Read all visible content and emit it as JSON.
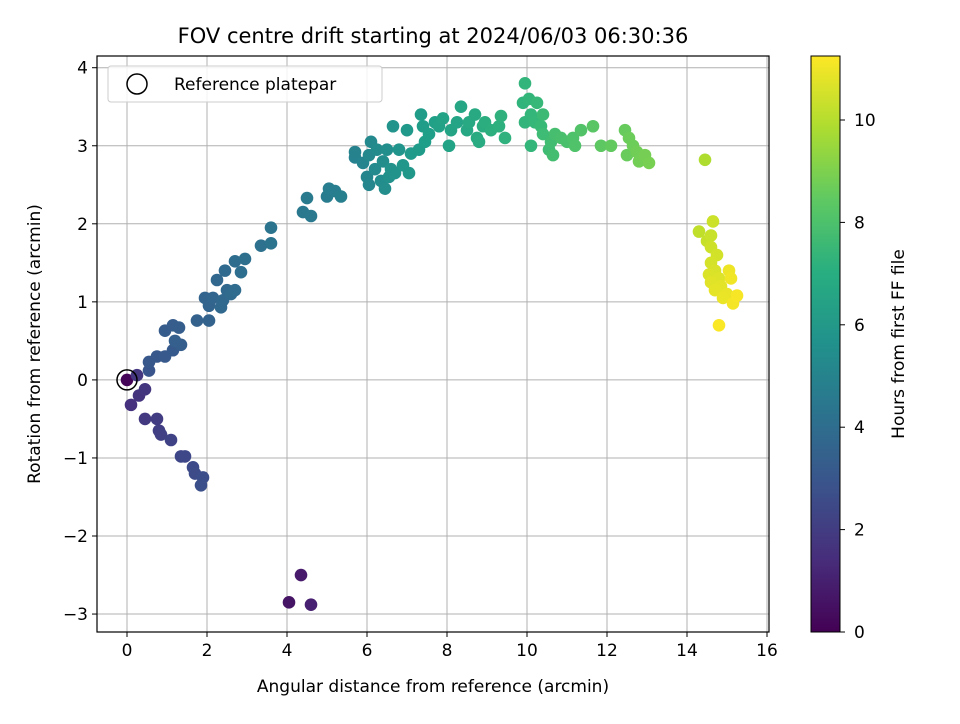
{
  "chart_data": {
    "type": "scatter",
    "title": "FOV centre drift starting at 2024/06/03 06:30:36",
    "xlabel": "Angular distance from reference (arcmin)",
    "ylabel": "Rotation from reference (arcmin)",
    "xlim": [
      -0.75,
      16.05
    ],
    "ylim": [
      -3.23,
      4.15
    ],
    "xticks": [
      0,
      2,
      4,
      6,
      8,
      10,
      12,
      14,
      16
    ],
    "yticks": [
      -3,
      -2,
      -1,
      0,
      1,
      2,
      3,
      4
    ],
    "xtick_labels": [
      "0",
      "2",
      "4",
      "6",
      "8",
      "10",
      "12",
      "14",
      "16"
    ],
    "ytick_labels": [
      "−3",
      "−2",
      "−1",
      "0",
      "1",
      "2",
      "3",
      "4"
    ],
    "grid": true,
    "legend": {
      "position": "top-left",
      "label": "Reference platepar"
    },
    "reference_point": {
      "x": 0,
      "y": 0
    },
    "colorbar": {
      "label": "Hours from first FF file",
      "range": [
        0,
        11.25
      ],
      "ticks": [
        0,
        2,
        4,
        6,
        8,
        10
      ],
      "tick_labels": [
        "0",
        "2",
        "4",
        "6",
        "8",
        "10"
      ],
      "colormap": "viridis"
    },
    "points": [
      {
        "x": 0.0,
        "y": 0.0,
        "c": 0.1
      },
      {
        "x": 4.05,
        "y": -2.85,
        "c": 0.6
      },
      {
        "x": 4.35,
        "y": -2.5,
        "c": 0.8
      },
      {
        "x": 4.6,
        "y": -2.88,
        "c": 1.0
      },
      {
        "x": 0.1,
        "y": -0.32,
        "c": 1.6
      },
      {
        "x": 0.3,
        "y": -0.2,
        "c": 1.7
      },
      {
        "x": 0.45,
        "y": -0.12,
        "c": 1.75
      },
      {
        "x": 0.25,
        "y": 0.06,
        "c": 1.8
      },
      {
        "x": 0.45,
        "y": -0.5,
        "c": 1.9
      },
      {
        "x": 0.75,
        "y": -0.5,
        "c": 2.0
      },
      {
        "x": 0.8,
        "y": -0.65,
        "c": 2.1
      },
      {
        "x": 0.85,
        "y": -0.7,
        "c": 2.15
      },
      {
        "x": 1.1,
        "y": -0.77,
        "c": 2.25
      },
      {
        "x": 1.35,
        "y": -0.98,
        "c": 2.4
      },
      {
        "x": 1.45,
        "y": -0.98,
        "c": 2.45
      },
      {
        "x": 1.65,
        "y": -1.12,
        "c": 2.55
      },
      {
        "x": 1.7,
        "y": -1.2,
        "c": 2.6
      },
      {
        "x": 1.9,
        "y": -1.25,
        "c": 2.7
      },
      {
        "x": 1.85,
        "y": -1.35,
        "c": 2.75
      },
      {
        "x": 0.55,
        "y": 0.12,
        "c": 3.0
      },
      {
        "x": 0.55,
        "y": 0.23,
        "c": 3.05
      },
      {
        "x": 0.75,
        "y": 0.3,
        "c": 3.1
      },
      {
        "x": 0.95,
        "y": 0.3,
        "c": 3.15
      },
      {
        "x": 1.15,
        "y": 0.38,
        "c": 3.2
      },
      {
        "x": 0.95,
        "y": 0.63,
        "c": 3.25
      },
      {
        "x": 1.15,
        "y": 0.7,
        "c": 3.3
      },
      {
        "x": 1.3,
        "y": 0.67,
        "c": 3.35
      },
      {
        "x": 1.35,
        "y": 0.45,
        "c": 3.35
      },
      {
        "x": 1.2,
        "y": 0.5,
        "c": 3.4
      },
      {
        "x": 1.75,
        "y": 0.76,
        "c": 3.5
      },
      {
        "x": 2.05,
        "y": 0.76,
        "c": 3.55
      },
      {
        "x": 1.95,
        "y": 1.05,
        "c": 3.6
      },
      {
        "x": 2.05,
        "y": 0.95,
        "c": 3.6
      },
      {
        "x": 2.15,
        "y": 1.05,
        "c": 3.65
      },
      {
        "x": 2.25,
        "y": 1.28,
        "c": 3.7
      },
      {
        "x": 2.35,
        "y": 0.93,
        "c": 3.75
      },
      {
        "x": 2.4,
        "y": 1.02,
        "c": 3.75
      },
      {
        "x": 2.5,
        "y": 1.15,
        "c": 3.8
      },
      {
        "x": 2.45,
        "y": 1.4,
        "c": 3.85
      },
      {
        "x": 2.6,
        "y": 1.1,
        "c": 3.9
      },
      {
        "x": 2.7,
        "y": 1.15,
        "c": 3.95
      },
      {
        "x": 2.7,
        "y": 1.52,
        "c": 4.0
      },
      {
        "x": 2.85,
        "y": 1.38,
        "c": 4.05
      },
      {
        "x": 2.95,
        "y": 1.55,
        "c": 4.1
      },
      {
        "x": 3.35,
        "y": 1.72,
        "c": 4.2
      },
      {
        "x": 3.6,
        "y": 1.75,
        "c": 4.3
      },
      {
        "x": 3.6,
        "y": 1.95,
        "c": 4.35
      },
      {
        "x": 4.4,
        "y": 2.15,
        "c": 4.5
      },
      {
        "x": 4.6,
        "y": 2.1,
        "c": 4.55
      },
      {
        "x": 4.5,
        "y": 2.33,
        "c": 4.6
      },
      {
        "x": 5.0,
        "y": 2.35,
        "c": 4.7
      },
      {
        "x": 5.05,
        "y": 2.45,
        "c": 4.75
      },
      {
        "x": 5.2,
        "y": 2.42,
        "c": 4.8
      },
      {
        "x": 5.35,
        "y": 2.35,
        "c": 4.85
      },
      {
        "x": 5.7,
        "y": 2.85,
        "c": 5.0
      },
      {
        "x": 5.7,
        "y": 2.92,
        "c": 5.05
      },
      {
        "x": 5.9,
        "y": 2.78,
        "c": 5.1
      },
      {
        "x": 6.0,
        "y": 2.6,
        "c": 5.15
      },
      {
        "x": 6.05,
        "y": 2.5,
        "c": 5.2
      },
      {
        "x": 6.05,
        "y": 2.88,
        "c": 5.25
      },
      {
        "x": 6.1,
        "y": 3.05,
        "c": 5.3
      },
      {
        "x": 6.2,
        "y": 2.7,
        "c": 5.35
      },
      {
        "x": 6.25,
        "y": 2.95,
        "c": 5.4
      },
      {
        "x": 6.35,
        "y": 2.55,
        "c": 5.45
      },
      {
        "x": 6.4,
        "y": 2.8,
        "c": 5.5
      },
      {
        "x": 6.45,
        "y": 2.45,
        "c": 5.55
      },
      {
        "x": 6.5,
        "y": 2.95,
        "c": 5.6
      },
      {
        "x": 6.55,
        "y": 2.6,
        "c": 5.65
      },
      {
        "x": 6.6,
        "y": 2.7,
        "c": 5.7
      },
      {
        "x": 6.7,
        "y": 2.65,
        "c": 5.75
      },
      {
        "x": 6.65,
        "y": 3.25,
        "c": 5.8
      },
      {
        "x": 6.8,
        "y": 2.95,
        "c": 5.85
      },
      {
        "x": 6.9,
        "y": 2.75,
        "c": 5.9
      },
      {
        "x": 7.05,
        "y": 2.65,
        "c": 5.95
      },
      {
        "x": 7.0,
        "y": 3.2,
        "c": 6.0
      },
      {
        "x": 7.1,
        "y": 2.9,
        "c": 6.05
      },
      {
        "x": 7.3,
        "y": 2.95,
        "c": 6.1
      },
      {
        "x": 7.35,
        "y": 3.4,
        "c": 6.15
      },
      {
        "x": 7.4,
        "y": 3.25,
        "c": 6.2
      },
      {
        "x": 7.45,
        "y": 3.05,
        "c": 6.25
      },
      {
        "x": 7.55,
        "y": 3.15,
        "c": 6.3
      },
      {
        "x": 7.7,
        "y": 3.3,
        "c": 6.35
      },
      {
        "x": 7.8,
        "y": 3.25,
        "c": 6.4
      },
      {
        "x": 7.9,
        "y": 3.35,
        "c": 6.45
      },
      {
        "x": 8.05,
        "y": 3.0,
        "c": 6.5
      },
      {
        "x": 8.1,
        "y": 3.2,
        "c": 6.55
      },
      {
        "x": 8.25,
        "y": 3.3,
        "c": 6.6
      },
      {
        "x": 8.35,
        "y": 3.5,
        "c": 6.65
      },
      {
        "x": 8.5,
        "y": 3.2,
        "c": 6.7
      },
      {
        "x": 8.55,
        "y": 3.3,
        "c": 6.75
      },
      {
        "x": 8.7,
        "y": 3.4,
        "c": 6.8
      },
      {
        "x": 8.75,
        "y": 3.1,
        "c": 6.85
      },
      {
        "x": 8.8,
        "y": 3.05,
        "c": 6.9
      },
      {
        "x": 8.9,
        "y": 3.25,
        "c": 6.95
      },
      {
        "x": 8.95,
        "y": 3.3,
        "c": 7.0
      },
      {
        "x": 9.1,
        "y": 3.2,
        "c": 7.05
      },
      {
        "x": 9.3,
        "y": 3.25,
        "c": 7.1
      },
      {
        "x": 9.35,
        "y": 3.38,
        "c": 7.15
      },
      {
        "x": 9.45,
        "y": 3.1,
        "c": 7.2
      },
      {
        "x": 9.9,
        "y": 3.55,
        "c": 7.3
      },
      {
        "x": 9.95,
        "y": 3.8,
        "c": 7.35
      },
      {
        "x": 9.95,
        "y": 3.3,
        "c": 7.35
      },
      {
        "x": 10.05,
        "y": 3.6,
        "c": 7.4
      },
      {
        "x": 10.1,
        "y": 3.4,
        "c": 7.45
      },
      {
        "x": 10.1,
        "y": 3.0,
        "c": 7.45
      },
      {
        "x": 10.2,
        "y": 3.3,
        "c": 7.5
      },
      {
        "x": 10.25,
        "y": 3.55,
        "c": 7.55
      },
      {
        "x": 10.35,
        "y": 3.25,
        "c": 7.6
      },
      {
        "x": 10.4,
        "y": 3.4,
        "c": 7.65
      },
      {
        "x": 10.4,
        "y": 3.15,
        "c": 7.7
      },
      {
        "x": 10.55,
        "y": 2.95,
        "c": 7.75
      },
      {
        "x": 10.6,
        "y": 3.05,
        "c": 7.8
      },
      {
        "x": 10.65,
        "y": 2.88,
        "c": 7.85
      },
      {
        "x": 10.7,
        "y": 3.15,
        "c": 7.9
      },
      {
        "x": 10.85,
        "y": 3.1,
        "c": 7.95
      },
      {
        "x": 11.0,
        "y": 3.05,
        "c": 8.0
      },
      {
        "x": 11.15,
        "y": 3.1,
        "c": 8.05
      },
      {
        "x": 11.2,
        "y": 3.0,
        "c": 8.1
      },
      {
        "x": 11.35,
        "y": 3.2,
        "c": 8.15
      },
      {
        "x": 11.65,
        "y": 3.25,
        "c": 8.3
      },
      {
        "x": 11.85,
        "y": 3.0,
        "c": 8.4
      },
      {
        "x": 12.1,
        "y": 3.0,
        "c": 8.5
      },
      {
        "x": 12.45,
        "y": 3.2,
        "c": 8.6
      },
      {
        "x": 12.5,
        "y": 2.88,
        "c": 8.65
      },
      {
        "x": 12.55,
        "y": 3.1,
        "c": 8.7
      },
      {
        "x": 12.65,
        "y": 3.0,
        "c": 8.75
      },
      {
        "x": 12.75,
        "y": 2.92,
        "c": 8.8
      },
      {
        "x": 12.8,
        "y": 2.8,
        "c": 8.85
      },
      {
        "x": 12.95,
        "y": 2.88,
        "c": 8.9
      },
      {
        "x": 13.05,
        "y": 2.78,
        "c": 8.95
      },
      {
        "x": 14.45,
        "y": 2.82,
        "c": 9.9
      },
      {
        "x": 14.3,
        "y": 1.9,
        "c": 10.2
      },
      {
        "x": 14.5,
        "y": 1.78,
        "c": 10.3
      },
      {
        "x": 14.6,
        "y": 1.85,
        "c": 10.35
      },
      {
        "x": 14.65,
        "y": 2.03,
        "c": 10.4
      },
      {
        "x": 14.6,
        "y": 1.7,
        "c": 10.45
      },
      {
        "x": 14.75,
        "y": 1.6,
        "c": 10.5
      },
      {
        "x": 14.6,
        "y": 1.5,
        "c": 10.55
      },
      {
        "x": 14.7,
        "y": 1.4,
        "c": 10.6
      },
      {
        "x": 14.55,
        "y": 1.35,
        "c": 10.65
      },
      {
        "x": 14.8,
        "y": 1.3,
        "c": 10.7
      },
      {
        "x": 14.6,
        "y": 1.25,
        "c": 10.75
      },
      {
        "x": 14.85,
        "y": 1.2,
        "c": 10.8
      },
      {
        "x": 14.7,
        "y": 1.15,
        "c": 10.85
      },
      {
        "x": 15.0,
        "y": 1.1,
        "c": 10.9
      },
      {
        "x": 14.9,
        "y": 1.05,
        "c": 10.95
      },
      {
        "x": 15.05,
        "y": 1.4,
        "c": 11.0
      },
      {
        "x": 15.1,
        "y": 1.3,
        "c": 11.05
      },
      {
        "x": 15.15,
        "y": 0.98,
        "c": 11.1
      },
      {
        "x": 15.25,
        "y": 1.08,
        "c": 11.15
      },
      {
        "x": 14.8,
        "y": 0.7,
        "c": 11.2
      }
    ]
  }
}
